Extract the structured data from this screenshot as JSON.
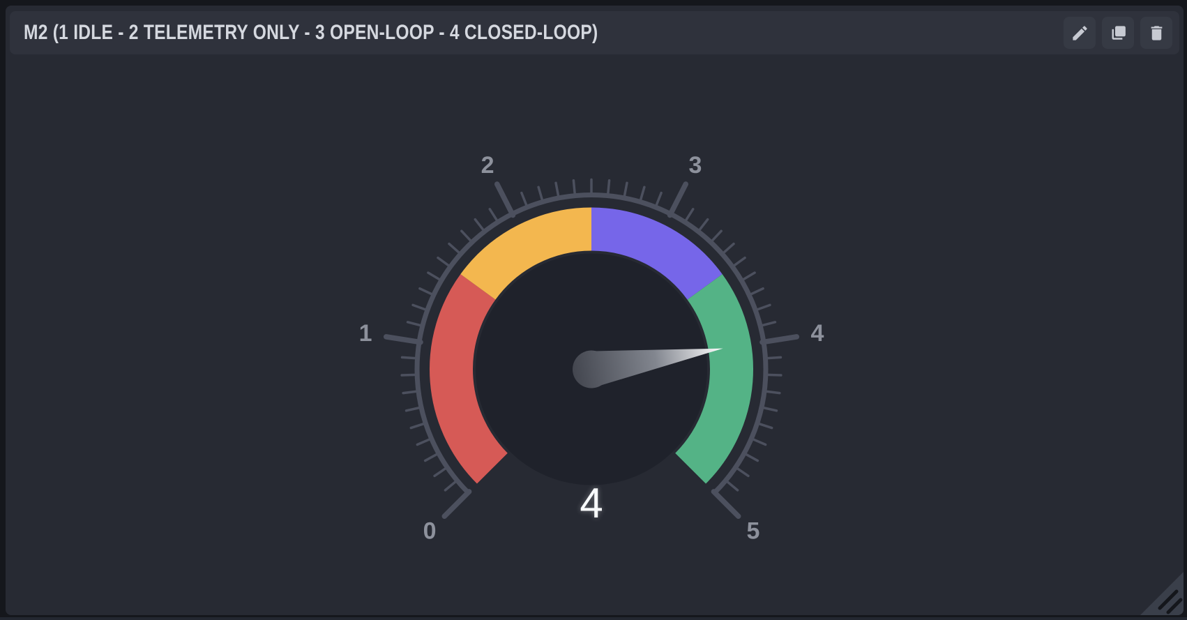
{
  "window": {
    "background": "#15171c"
  },
  "panel": {
    "title": "M2 (1 IDLE - 2 TELEMETRY ONLY - 3 OPEN-LOOP - 4 CLOSED-LOOP)",
    "background": "#272a33",
    "titlebar_background": "#2f323c",
    "title_color": "#d5d8df",
    "button_background": "#363a44",
    "icon_color": "#c7cad2",
    "buttons": [
      {
        "name": "edit",
        "icon": "pencil-icon"
      },
      {
        "name": "duplicate",
        "icon": "copy-icon"
      },
      {
        "name": "delete",
        "icon": "trash-icon"
      }
    ]
  },
  "chart_data": {
    "type": "gauge",
    "title": "M2 (1 IDLE - 2 TELEMETRY ONLY - 3 OPEN-LOOP - 4 CLOSED-LOOP)",
    "value": 4,
    "value_label": "4",
    "min": 0,
    "max": 5,
    "major_ticks": [
      0,
      1,
      2,
      3,
      4,
      5
    ],
    "minor_ticks_per_division": 10,
    "start_angle": 225,
    "sweep_angle": 270,
    "highlights": [
      {
        "from": 0,
        "to": 1.5,
        "color": "#d65a56"
      },
      {
        "from": 1.5,
        "to": 2.5,
        "color": "#f3b74f"
      },
      {
        "from": 2.5,
        "to": 3.5,
        "color": "#7666e9"
      },
      {
        "from": 3.5,
        "to": 5,
        "color": "#54b386"
      }
    ],
    "colors": {
      "ticks": "#4c505e",
      "tick_labels": "#8d919c",
      "value_text": "#f8fafc",
      "plate": "#1f222b",
      "needle_start": "#43464f",
      "needle_mid": "#82868f",
      "needle_end": "#ffffff"
    },
    "grid": false,
    "legend_position": "none"
  }
}
